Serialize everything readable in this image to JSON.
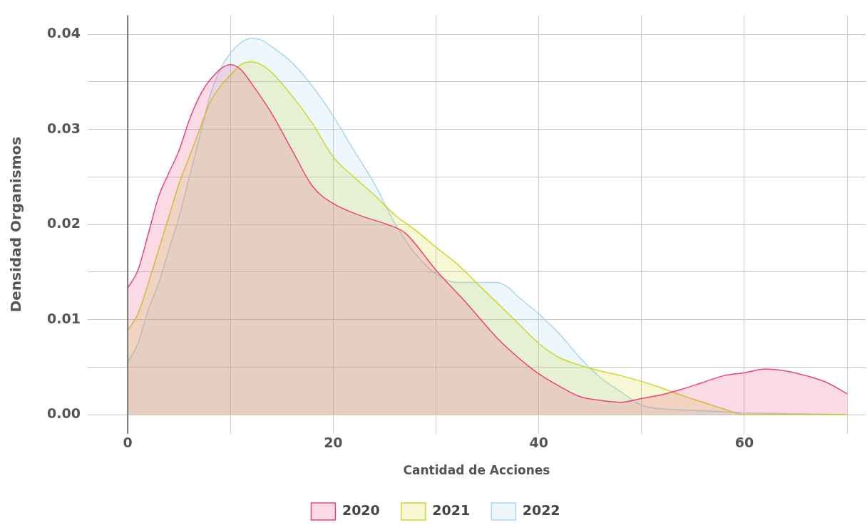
{
  "chart_data": {
    "type": "area",
    "xlabel": "Cantidad de Acciones",
    "ylabel": "Densidad Organismos",
    "legend": "bottom",
    "grid": true,
    "xlim": [
      -3.9,
      71.8
    ],
    "ylim": [
      -0.002,
      0.042
    ],
    "xticks": [
      0,
      {
        "value": 10,
        "label": null
      },
      20,
      {
        "value": 30,
        "label": null
      },
      40,
      {
        "value": 50,
        "label": null
      },
      60,
      {
        "value": 70,
        "label": null
      }
    ],
    "yticks": [
      {
        "value": 0,
        "label": "0.00"
      },
      {
        "value": 0.005,
        "label": null
      },
      {
        "value": 0.01,
        "label": "0.01"
      },
      {
        "value": 0.015,
        "label": null
      },
      {
        "value": 0.02,
        "label": "0.02"
      },
      {
        "value": 0.025,
        "label": null
      },
      {
        "value": 0.03,
        "label": "0.03"
      },
      {
        "value": 0.035,
        "label": null
      },
      {
        "value": 0.04,
        "label": "0.04"
      }
    ],
    "ref_lines": [
      {
        "axis": "x",
        "value": 0,
        "color": "#777777"
      }
    ],
    "series": [
      {
        "name": "2020",
        "color": "#e8457a",
        "x": [
          0,
          1,
          2,
          3,
          4,
          5,
          6,
          7,
          8,
          10,
          11,
          12,
          14,
          16,
          18,
          20,
          23,
          25,
          27,
          30,
          33,
          36,
          38,
          40,
          42,
          44,
          46,
          48,
          50,
          52,
          54,
          56,
          58,
          60,
          62,
          64,
          66,
          68,
          70
        ],
        "values": [
          0.0133,
          0.0152,
          0.019,
          0.0229,
          0.0254,
          0.0278,
          0.031,
          0.0335,
          0.0352,
          0.0368,
          0.0363,
          0.0349,
          0.0317,
          0.0278,
          0.024,
          0.0222,
          0.0208,
          0.0201,
          0.0191,
          0.0152,
          0.0117,
          0.008,
          0.006,
          0.0043,
          0.003,
          0.0019,
          0.0015,
          0.0013,
          0.0017,
          0.0021,
          0.0027,
          0.0034,
          0.0041,
          0.0044,
          0.0048,
          0.0046,
          0.0041,
          0.0034,
          0.0022
        ]
      },
      {
        "name": "2021",
        "color": "#cfd62d",
        "x": [
          0,
          1,
          2,
          3,
          4,
          5,
          6,
          7,
          8,
          9,
          10,
          11,
          12,
          13,
          14,
          16,
          18,
          20,
          22,
          24,
          26,
          28,
          30,
          32,
          34,
          36,
          38,
          40,
          42,
          44,
          46,
          48,
          50,
          52,
          54,
          56,
          58,
          60,
          65,
          70
        ],
        "values": [
          0.0089,
          0.0106,
          0.0138,
          0.0173,
          0.0208,
          0.0243,
          0.0271,
          0.03,
          0.0328,
          0.0345,
          0.0357,
          0.0368,
          0.0371,
          0.0368,
          0.036,
          0.0335,
          0.0306,
          0.0271,
          0.025,
          0.0231,
          0.021,
          0.0194,
          0.0176,
          0.0159,
          0.0138,
          0.0117,
          0.0096,
          0.0075,
          0.006,
          0.0052,
          0.0046,
          0.0041,
          0.0035,
          0.0028,
          0.002,
          0.0013,
          0.0006,
          0,
          0,
          0
        ]
      },
      {
        "name": "2022",
        "color": "#a8d8f0",
        "x": [
          0,
          1,
          2,
          3,
          4,
          5,
          6,
          7,
          8,
          9,
          10,
          11,
          12,
          13,
          14,
          16,
          18,
          20,
          22,
          24,
          26,
          28,
          30,
          32,
          34,
          36,
          37,
          38,
          40,
          42,
          44,
          46,
          48,
          50,
          52,
          54,
          56,
          58,
          60,
          65,
          70
        ],
        "values": [
          0.0055,
          0.0075,
          0.011,
          0.0138,
          0.0173,
          0.0208,
          0.025,
          0.0292,
          0.0335,
          0.0363,
          0.038,
          0.0391,
          0.0396,
          0.0394,
          0.0387,
          0.037,
          0.0345,
          0.0314,
          0.0278,
          0.0243,
          0.0201,
          0.0169,
          0.0148,
          0.0139,
          0.0139,
          0.0139,
          0.0134,
          0.0124,
          0.0106,
          0.0085,
          0.006,
          0.0039,
          0.0024,
          0.001,
          0.0006,
          0.0005,
          0.0004,
          0.0003,
          0.0002,
          0.0001,
          0
        ]
      }
    ]
  }
}
